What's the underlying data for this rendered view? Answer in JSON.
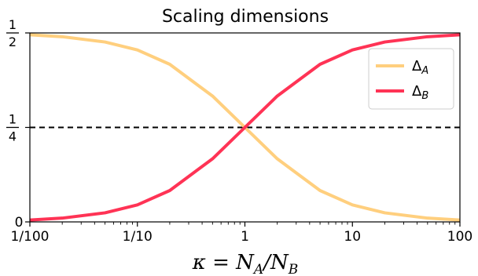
{
  "chart_data": {
    "type": "line",
    "title": "Scaling dimensions",
    "x_scale": "log",
    "xlim": [
      0.01,
      100
    ],
    "ylim": [
      0,
      0.5
    ],
    "grid": false,
    "xlabel": {
      "base": "κ = N",
      "sub1": "A",
      "mid": "/N",
      "sub2": "B"
    },
    "x_ticks": [
      {
        "value": 0.01,
        "label": "1/100"
      },
      {
        "value": 0.1,
        "label": "1/10"
      },
      {
        "value": 1,
        "label": "1"
      },
      {
        "value": 10,
        "label": "10"
      },
      {
        "value": 100,
        "label": "100"
      }
    ],
    "y_ticks": [
      {
        "value": 0,
        "label": "0",
        "kind": "plain"
      },
      {
        "value": 0.25,
        "num": "1",
        "den": "4",
        "kind": "fraction"
      },
      {
        "value": 0.5,
        "num": "1",
        "den": "2",
        "kind": "fraction"
      }
    ],
    "reference_line": {
      "y": 0.25,
      "style": "dashed",
      "color": "#000000"
    },
    "legend": {
      "position": "upper right"
    },
    "series": [
      {
        "name": "Δ",
        "sub": "A",
        "color": "#ffcf7e",
        "x": [
          0.01,
          0.02,
          0.05,
          0.1,
          0.2,
          0.5,
          1,
          2,
          5,
          10,
          20,
          50,
          100
        ],
        "y": [
          0.495,
          0.49,
          0.476,
          0.455,
          0.417,
          0.333,
          0.25,
          0.167,
          0.083,
          0.045,
          0.024,
          0.01,
          0.005
        ]
      },
      {
        "name": "Δ",
        "sub": "B",
        "color": "#ff3355",
        "x": [
          0.01,
          0.02,
          0.05,
          0.1,
          0.2,
          0.5,
          1,
          2,
          5,
          10,
          20,
          50,
          100
        ],
        "y": [
          0.005,
          0.01,
          0.024,
          0.045,
          0.083,
          0.167,
          0.25,
          0.333,
          0.417,
          0.455,
          0.476,
          0.49,
          0.495
        ]
      }
    ]
  }
}
